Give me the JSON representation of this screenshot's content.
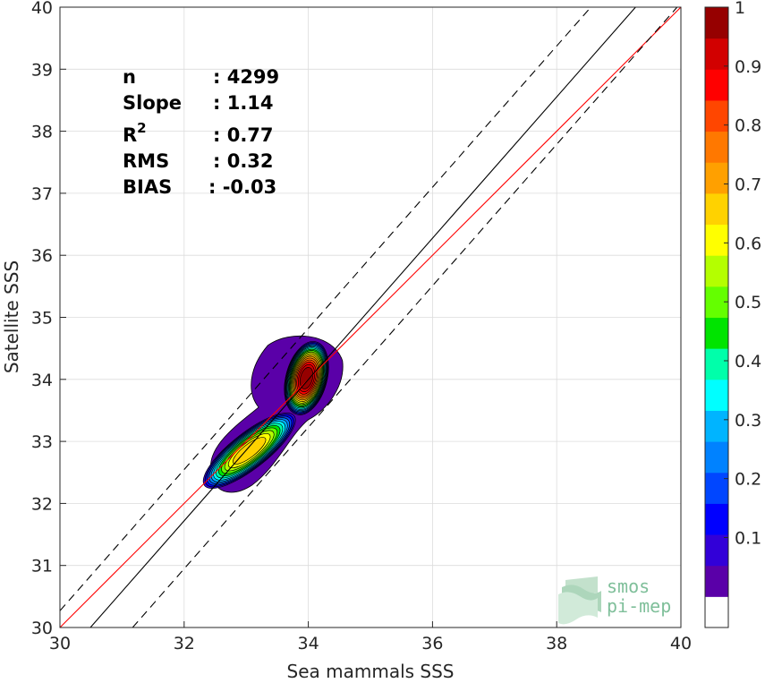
{
  "chart_data": {
    "type": "heatmap",
    "subtype": "density-contour-scatter",
    "title": "",
    "xlabel": "Sea mammals SSS",
    "ylabel": "Satellite SSS",
    "xlim": [
      30,
      40
    ],
    "ylim": [
      30,
      40
    ],
    "xticks": [
      "30",
      "32",
      "34",
      "36",
      "38",
      "40"
    ],
    "yticks": [
      "30",
      "31",
      "32",
      "33",
      "34",
      "35",
      "36",
      "37",
      "38",
      "39",
      "40"
    ],
    "grid": true,
    "stats": [
      {
        "label": "n",
        "value": ": 4299"
      },
      {
        "label": "Slope",
        "value": ": 1.14"
      },
      {
        "label": "R",
        "sup": "2",
        "value": ": 0.77"
      },
      {
        "label": "RMS",
        "value": ": 0.32"
      },
      {
        "label": "BIAS",
        "value": ": -0.03"
      }
    ],
    "reference_lines": {
      "identity": {
        "from": [
          30,
          30
        ],
        "to": [
          40,
          40
        ],
        "color": "#ff0000"
      },
      "regression": {
        "slope": 1.14,
        "from": [
          30.49,
          30
        ],
        "to": [
          39.27,
          40
        ],
        "color": "#000000"
      },
      "regression_bounds": [
        {
          "from": [
            30,
            30.27
          ],
          "to": [
            38.55,
            40
          ],
          "color": "#000000",
          "style": "dashed"
        },
        {
          "from": [
            31.17,
            30
          ],
          "to": [
            40,
            40.07
          ],
          "color": "#000000",
          "style": "dashed"
        }
      ]
    },
    "density_peaks": [
      {
        "x": 33.05,
        "y": 32.85,
        "value": 0.68
      },
      {
        "x": 33.97,
        "y": 34.02,
        "value": 1.0
      }
    ],
    "colorbar": {
      "ticks": [
        "0.1",
        "0.2",
        "0.3",
        "0.4",
        "0.5",
        "0.6",
        "0.7",
        "0.8",
        "0.9",
        "1"
      ],
      "colors": [
        "#ffffff",
        "#5a00a8",
        "#3200d8",
        "#0000ff",
        "#0046ff",
        "#0082ff",
        "#00b4ff",
        "#00ffff",
        "#00ffaa",
        "#00e400",
        "#64ff00",
        "#b4ff00",
        "#ffff00",
        "#ffd200",
        "#ffa000",
        "#ff7800",
        "#ff4600",
        "#ff0000",
        "#d20000",
        "#960000"
      ]
    },
    "logo": {
      "line1": "smos",
      "line2": "pi-mep"
    }
  }
}
